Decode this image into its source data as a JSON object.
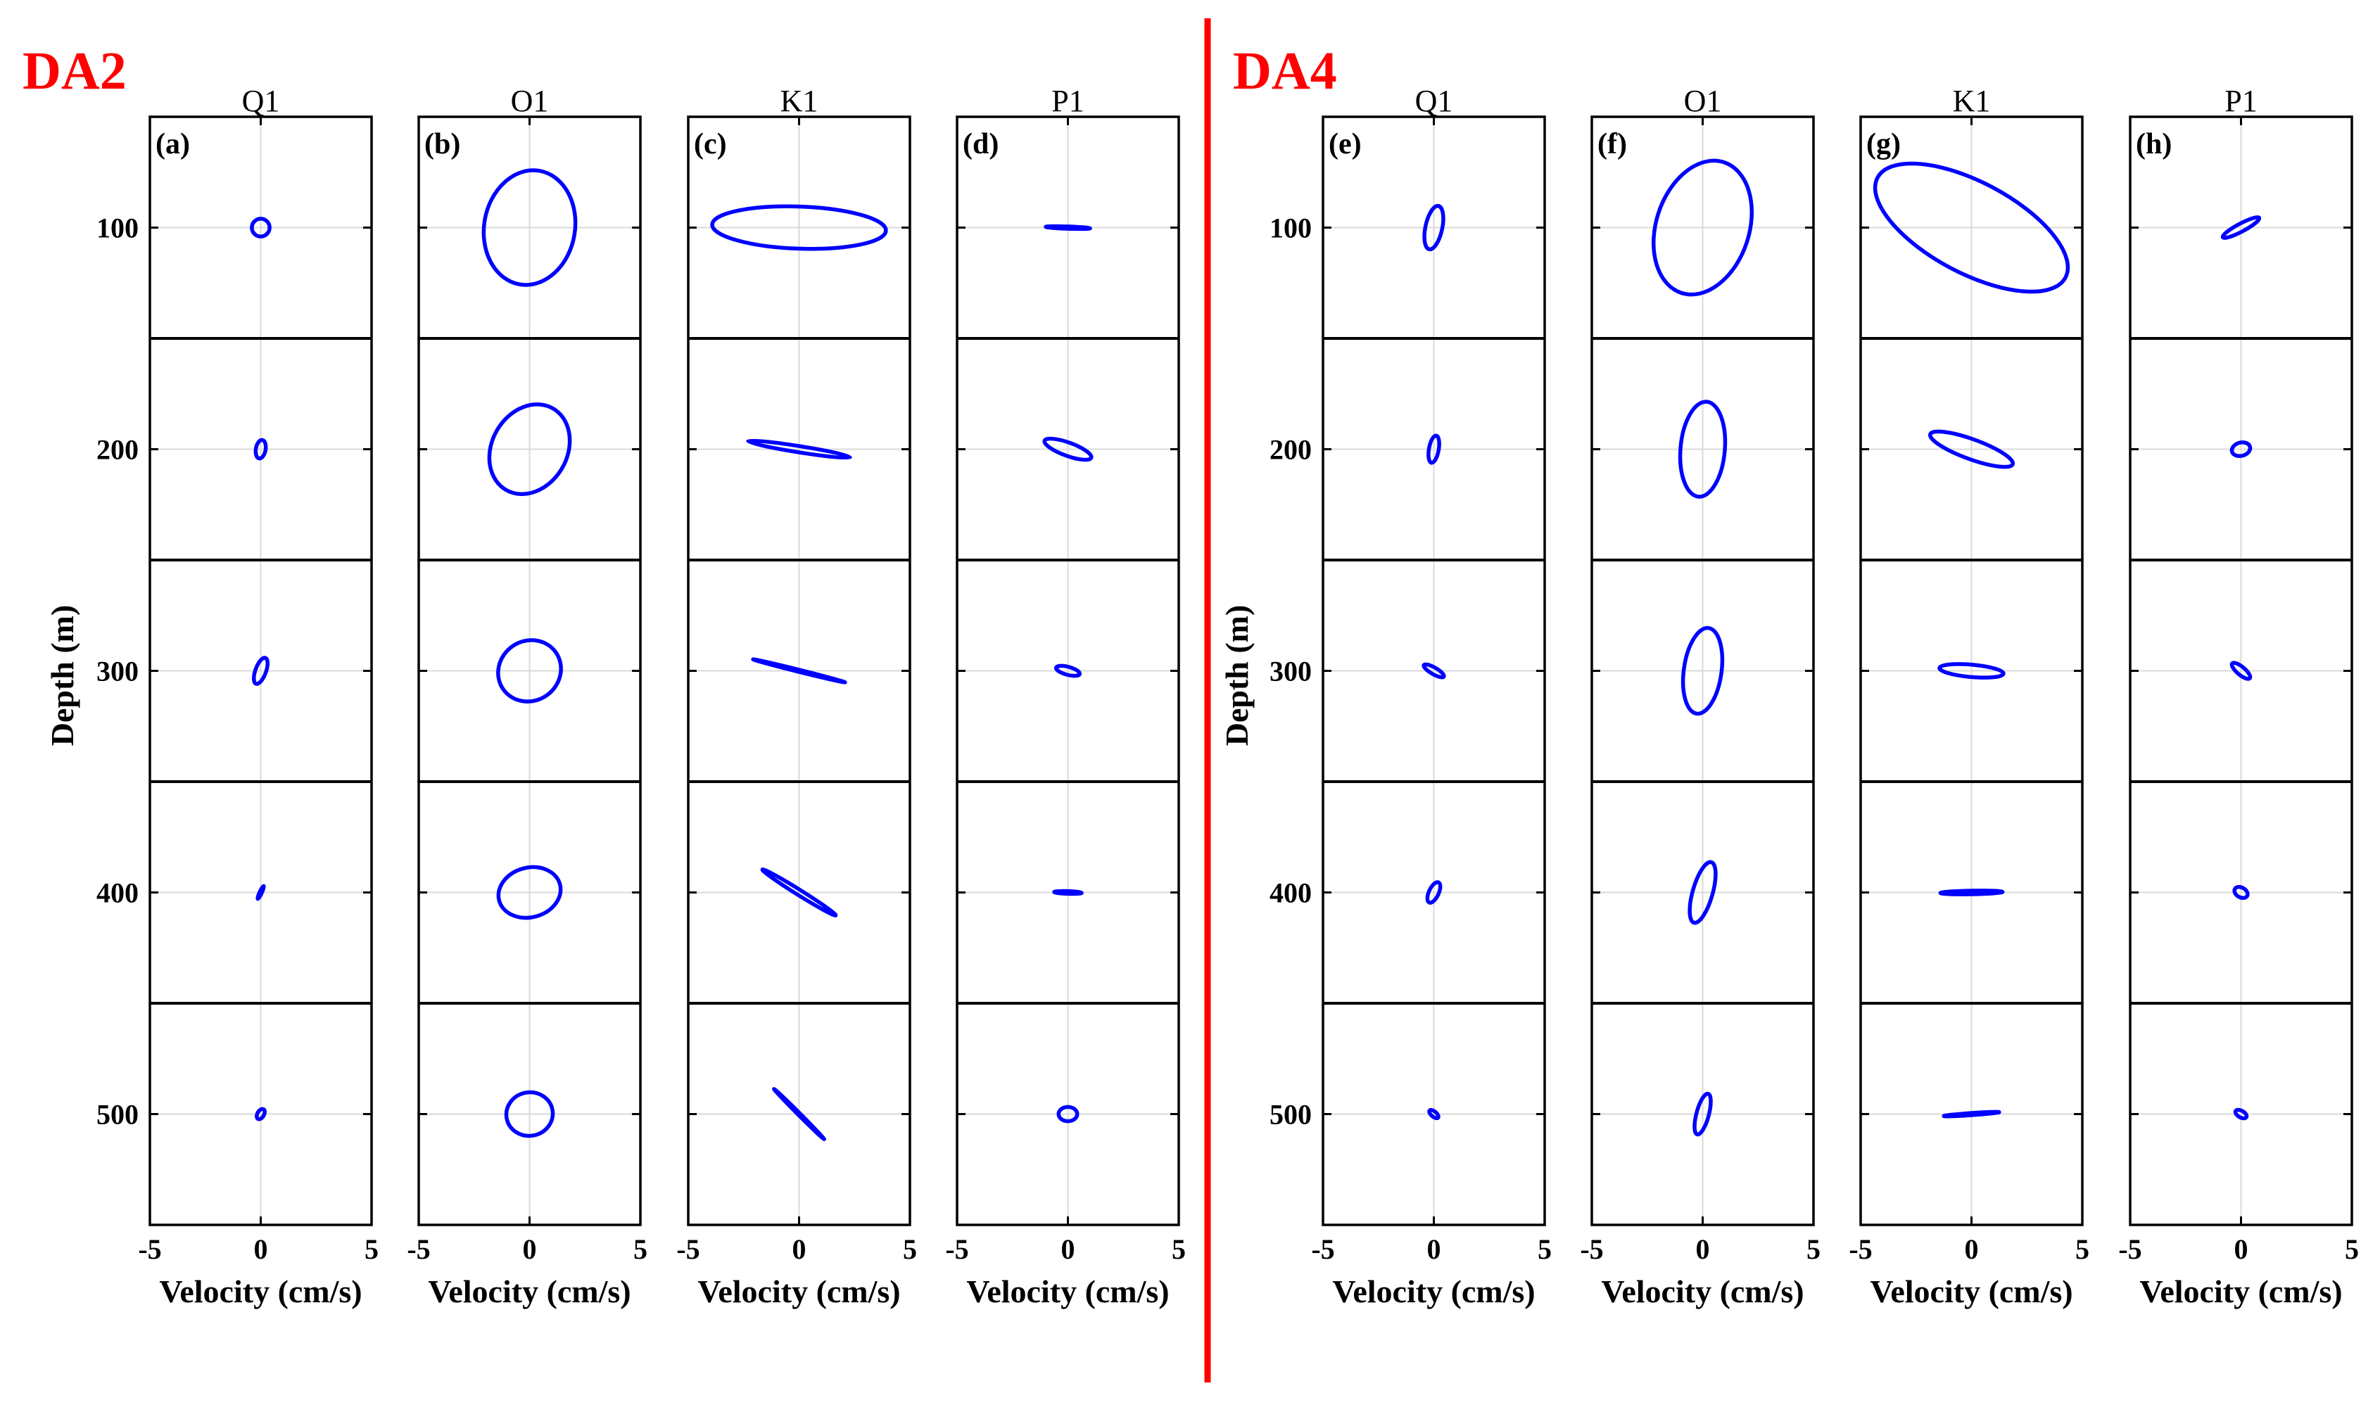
{
  "groups": [
    {
      "title": "DA2",
      "ylabel": "Depth (m)"
    },
    {
      "title": "DA4",
      "ylabel": "Depth (m)"
    }
  ],
  "colors": {
    "ellipse": "#0000ff",
    "divider": "#ff0000",
    "group_title": "#ff0000",
    "grid": "#d9d9d9"
  },
  "chart_data": {
    "type": "scatter",
    "description_units": {
      "x": "cm/s",
      "y": "m"
    },
    "xlabel": "Velocity (cm/s)",
    "ylabel": "Depth (m)",
    "xlim": [
      -5,
      5
    ],
    "ylim": [
      550,
      50
    ],
    "x_ticks": [
      -5,
      0,
      5
    ],
    "y_ticks": [
      100,
      200,
      300,
      400,
      500
    ],
    "depth_bands": [
      50,
      150,
      250,
      350,
      450,
      550
    ],
    "grid": true,
    "panels": [
      {
        "group": "DA2",
        "label": "(a)",
        "title": "Q1",
        "ellipses": [
          {
            "depth": 100,
            "major": 0.4,
            "minor": 0.4,
            "angle": 0
          },
          {
            "depth": 200,
            "major": 0.42,
            "minor": 0.22,
            "angle": 80
          },
          {
            "depth": 300,
            "major": 0.62,
            "minor": 0.24,
            "angle": 70
          },
          {
            "depth": 400,
            "major": 0.32,
            "minor": 0.05,
            "angle": 65
          },
          {
            "depth": 500,
            "major": 0.25,
            "minor": 0.15,
            "angle": 60
          }
        ]
      },
      {
        "group": "DA2",
        "label": "(b)",
        "title": "O1",
        "ellipses": [
          {
            "depth": 100,
            "major": 2.6,
            "minor": 2.05,
            "angle": 80
          },
          {
            "depth": 200,
            "major": 2.12,
            "minor": 1.7,
            "angle": 60
          },
          {
            "depth": 300,
            "major": 1.45,
            "minor": 1.35,
            "angle": 35
          },
          {
            "depth": 400,
            "major": 1.42,
            "minor": 1.12,
            "angle": 15
          },
          {
            "depth": 500,
            "major": 1.05,
            "minor": 0.98,
            "angle": 10
          }
        ]
      },
      {
        "group": "DA2",
        "label": "(c)",
        "title": "K1",
        "ellipses": [
          {
            "depth": 100,
            "major": 3.92,
            "minor": 0.95,
            "angle": -2
          },
          {
            "depth": 200,
            "major": 2.33,
            "minor": 0.14,
            "angle": -9
          },
          {
            "depth": 300,
            "major": 2.14,
            "minor": 0.03,
            "angle": -14
          },
          {
            "depth": 400,
            "major": 1.95,
            "minor": 0.12,
            "angle": -32
          },
          {
            "depth": 500,
            "major": 1.6,
            "minor": 0.03,
            "angle": -45
          }
        ]
      },
      {
        "group": "DA2",
        "label": "(d)",
        "title": "P1",
        "ellipses": [
          {
            "depth": 100,
            "major": 1.0,
            "minor": 0.05,
            "angle": -2
          },
          {
            "depth": 200,
            "major": 1.12,
            "minor": 0.3,
            "angle": -20
          },
          {
            "depth": 300,
            "major": 0.55,
            "minor": 0.18,
            "angle": -15
          },
          {
            "depth": 400,
            "major": 0.62,
            "minor": 0.06,
            "angle": -2
          },
          {
            "depth": 500,
            "major": 0.42,
            "minor": 0.32,
            "angle": 0
          }
        ]
      },
      {
        "group": "DA4",
        "label": "(e)",
        "title": "Q1",
        "ellipses": [
          {
            "depth": 100,
            "major": 1.0,
            "minor": 0.38,
            "angle": 78
          },
          {
            "depth": 200,
            "major": 0.62,
            "minor": 0.22,
            "angle": 80
          },
          {
            "depth": 300,
            "major": 0.52,
            "minor": 0.15,
            "angle": -30
          },
          {
            "depth": 400,
            "major": 0.5,
            "minor": 0.22,
            "angle": 65
          },
          {
            "depth": 500,
            "major": 0.25,
            "minor": 0.12,
            "angle": -40
          }
        ]
      },
      {
        "group": "DA4",
        "label": "(f)",
        "title": "O1",
        "ellipses": [
          {
            "depth": 100,
            "major": 3.1,
            "minor": 2.1,
            "angle": 72
          },
          {
            "depth": 200,
            "major": 2.15,
            "minor": 1.0,
            "angle": 85
          },
          {
            "depth": 300,
            "major": 1.95,
            "minor": 0.85,
            "angle": 82
          },
          {
            "depth": 400,
            "major": 1.42,
            "minor": 0.45,
            "angle": 74
          },
          {
            "depth": 500,
            "major": 0.95,
            "minor": 0.28,
            "angle": 75
          }
        ]
      },
      {
        "group": "DA4",
        "label": "(g)",
        "title": "K1",
        "ellipses": [
          {
            "depth": 100,
            "major": 4.8,
            "minor": 2.05,
            "angle": -28
          },
          {
            "depth": 200,
            "major": 1.98,
            "minor": 0.45,
            "angle": -20
          },
          {
            "depth": 300,
            "major": 1.45,
            "minor": 0.28,
            "angle": -5
          },
          {
            "depth": 400,
            "major": 1.4,
            "minor": 0.08,
            "angle": 1
          },
          {
            "depth": 500,
            "major": 1.25,
            "minor": 0.04,
            "angle": 4
          }
        ]
      },
      {
        "group": "DA4",
        "label": "(h)",
        "title": "P1",
        "ellipses": [
          {
            "depth": 100,
            "major": 0.93,
            "minor": 0.18,
            "angle": 28
          },
          {
            "depth": 200,
            "major": 0.42,
            "minor": 0.3,
            "angle": 15
          },
          {
            "depth": 300,
            "major": 0.52,
            "minor": 0.18,
            "angle": -40
          },
          {
            "depth": 400,
            "major": 0.32,
            "minor": 0.22,
            "angle": -30
          },
          {
            "depth": 500,
            "major": 0.28,
            "minor": 0.15,
            "angle": -30
          }
        ]
      }
    ]
  }
}
